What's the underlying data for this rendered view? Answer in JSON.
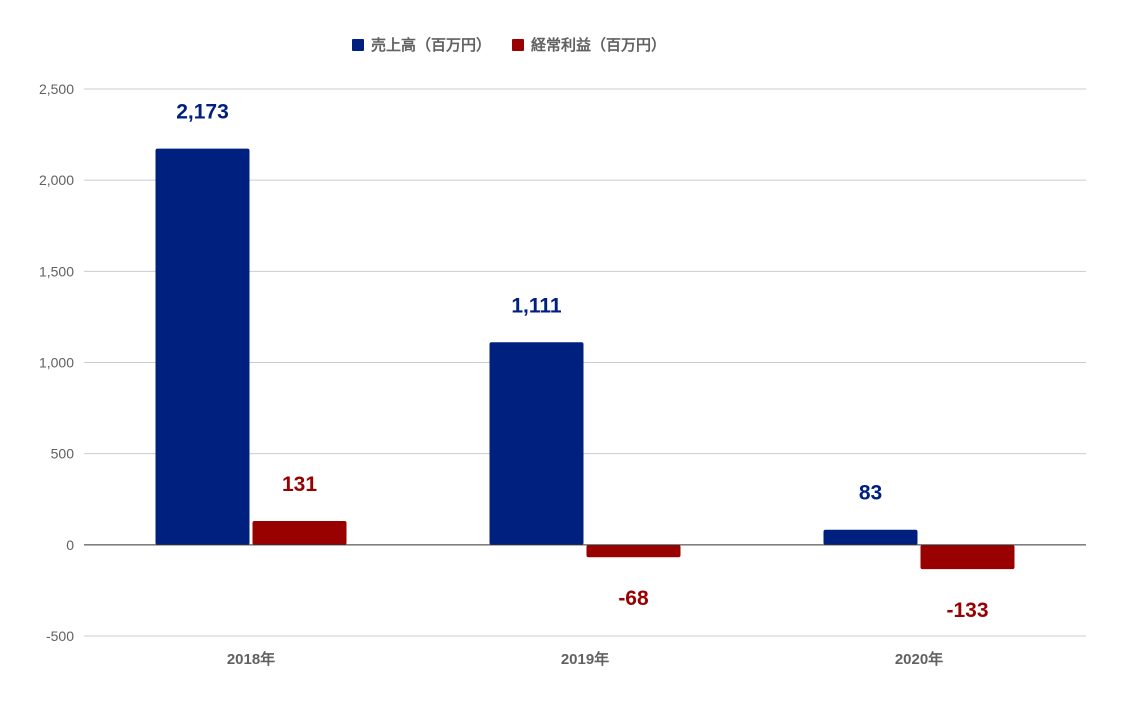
{
  "chart_data": {
    "type": "bar",
    "categories": [
      "2018年",
      "2019年",
      "2020年"
    ],
    "series": [
      {
        "name": "売上高（百万円）",
        "values": [
          2173,
          1111,
          83
        ],
        "labels": [
          "2,173",
          "1,111",
          "83"
        ],
        "color": "#002080"
      },
      {
        "name": "経常利益（百万円）",
        "values": [
          131,
          -68,
          -133
        ],
        "labels": [
          "131",
          "-68",
          "-133"
        ],
        "color": "#990000"
      }
    ],
    "ylim": [
      -500,
      2500
    ],
    "yticks": [
      -500,
      0,
      500,
      1000,
      1500,
      2000,
      2500
    ],
    "ytick_labels": [
      "-500",
      "0",
      "500",
      "1,000",
      "1,500",
      "2,000",
      "2,500"
    ],
    "grid": true,
    "legend_position": "top-center",
    "title": "",
    "xlabel": "",
    "ylabel": ""
  }
}
